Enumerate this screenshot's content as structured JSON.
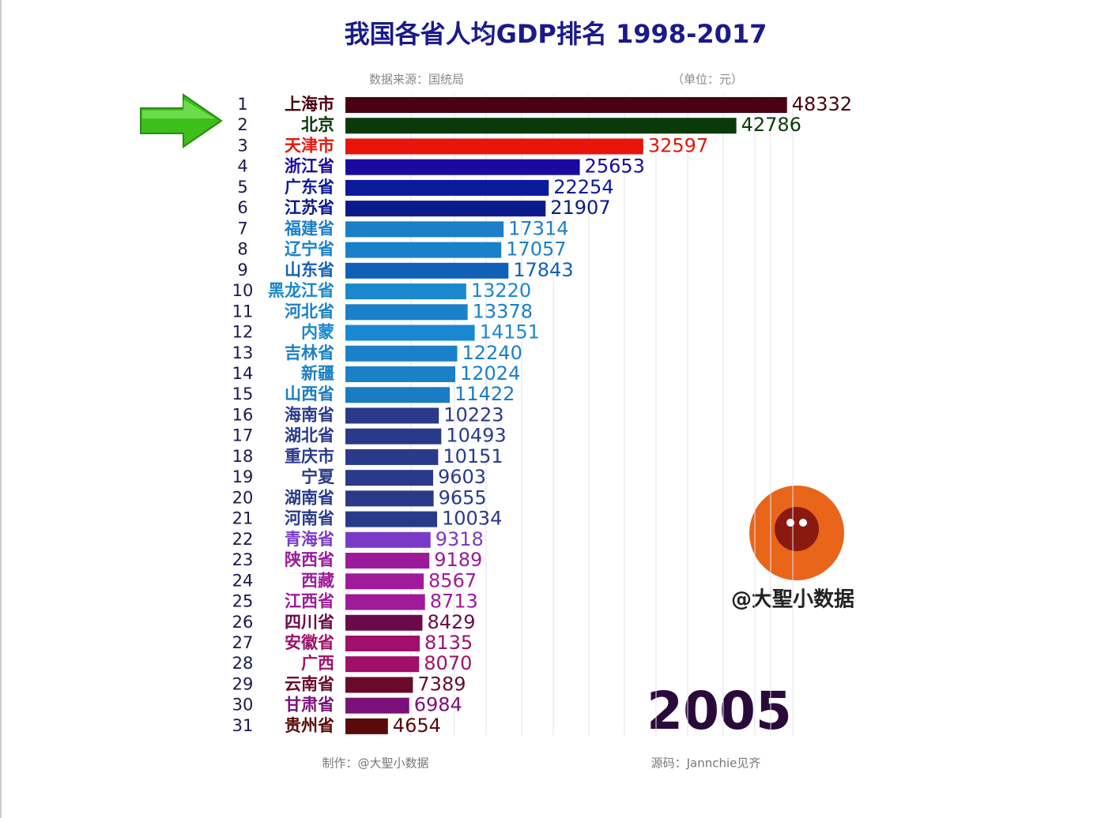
{
  "chart_data": {
    "type": "bar",
    "orientation": "horizontal",
    "title": "我国各省人均GDP排名 1998-2017",
    "source": "数据来源：国统局",
    "unit": "（单位：元）",
    "year": 2005,
    "watermark": "@大聖小数据",
    "footer_left": "制作：@大聖小数据",
    "footer_right": "源码：Jannchie见齐",
    "ranks": [
      1,
      2,
      3,
      4,
      5,
      6,
      7,
      8,
      9,
      10,
      11,
      12,
      13,
      14,
      15,
      16,
      17,
      18,
      19,
      20,
      21,
      22,
      23,
      24,
      25,
      26,
      27,
      28,
      29,
      30,
      31
    ],
    "categories": [
      "上海市",
      "北京",
      "天津市",
      "浙江省",
      "广东省",
      "江苏省",
      "福建省",
      "辽宁省",
      "山东省",
      "黑龙江省",
      "河北省",
      "内蒙",
      "吉林省",
      "新疆",
      "山西省",
      "海南省",
      "湖北省",
      "重庆市",
      "宁夏",
      "湖南省",
      "河南省",
      "青海省",
      "陕西省",
      "西藏",
      "江西省",
      "四川省",
      "安徽省",
      "广西",
      "云南省",
      "甘肃省",
      "贵州省"
    ],
    "values": [
      48332,
      42786,
      32597,
      25653,
      22254,
      21907,
      17314,
      17057,
      17843,
      13220,
      13378,
      14151,
      12240,
      12024,
      11422,
      10223,
      10493,
      10151,
      9603,
      9655,
      10034,
      9318,
      9189,
      8567,
      8713,
      8429,
      8135,
      8070,
      7389,
      6984,
      4654
    ],
    "colors": [
      "#4a0010",
      "#0a3a0a",
      "#e8150a",
      "#1a0aa0",
      "#0a1a9a",
      "#0a1a8a",
      "#1a7ec8",
      "#1a80c8",
      "#1060b8",
      "#1a88cc",
      "#1a80c8",
      "#1a88d0",
      "#1a80c8",
      "#1a80c8",
      "#1a7cc4",
      "#2a3a8a",
      "#2a3a8a",
      "#2a3a8a",
      "#2a3a8a",
      "#2a3a8a",
      "#2a3a8a",
      "#7a3ac8",
      "#9a1a9a",
      "#a01a9a",
      "#a01a9a",
      "#6a0a4a",
      "#a0106a",
      "#a0106a",
      "#6a0a2a",
      "#7a107a",
      "#5a0a0a"
    ],
    "xlim": [
      0,
      50000
    ]
  }
}
